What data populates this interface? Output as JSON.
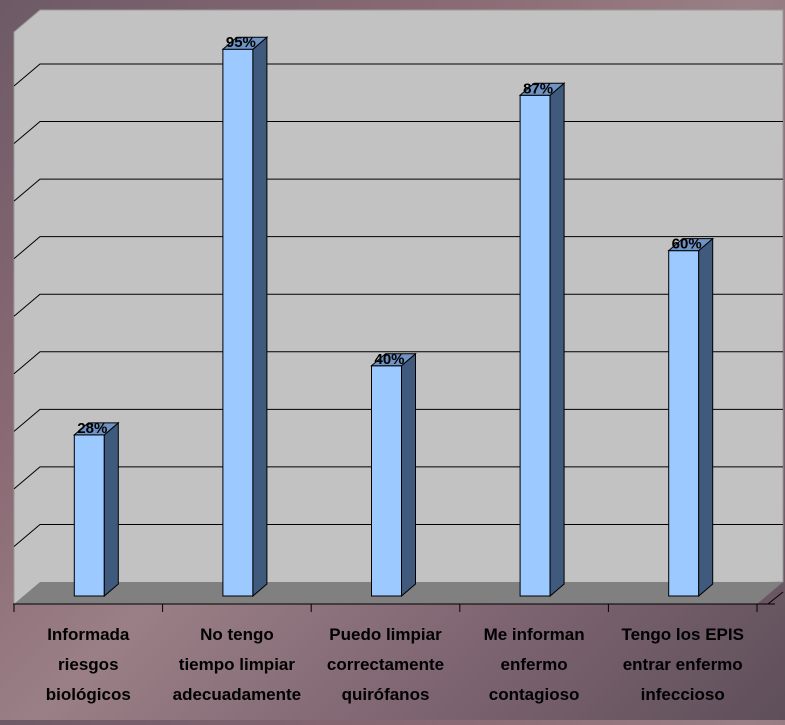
{
  "chart_data": {
    "type": "bar",
    "title": "",
    "xlabel": "",
    "ylabel": "",
    "ylim": [
      0,
      100
    ],
    "grid": true,
    "legend": "none",
    "categories": [
      [
        "Informada",
        "riesgos",
        "biológicos"
      ],
      [
        "No tengo",
        "tiempo limpiar",
        "adecuadamente"
      ],
      [
        "Puedo limpiar",
        "correctamente",
        "quirófanos"
      ],
      [
        "Me informan",
        "enfermo",
        "contagioso"
      ],
      [
        "Tengo los EPIS",
        "entrar enfermo",
        "infeccioso"
      ]
    ],
    "values": [
      28,
      95,
      40,
      87,
      60
    ],
    "data_labels": [
      "28%",
      "95%",
      "40%",
      "87%",
      "60%"
    ],
    "colors": {
      "bar_front": "#9cc9ff",
      "bar_side": "#3f5a7c",
      "bar_top": "#6f94c4",
      "back_wall": "#c2c2c2",
      "floor": "#808080",
      "grid": "#000000"
    }
  }
}
